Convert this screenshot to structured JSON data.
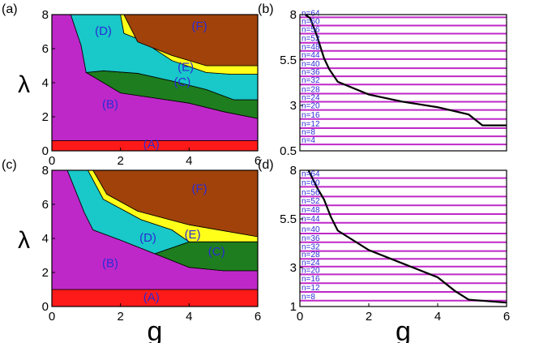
{
  "chart_data": [
    {
      "id": "a",
      "panel_label": "(a)",
      "type": "area",
      "xlabel": "",
      "ylabel": "λ",
      "xlim": [
        0,
        6
      ],
      "ylim": [
        0,
        8
      ],
      "xticks": [
        "0",
        "2",
        "4",
        "6"
      ],
      "yticks": [
        "0",
        "2",
        "4",
        "6",
        "8"
      ],
      "regions": [
        {
          "label": "(A)",
          "color": "#ff1a1a",
          "lower": [
            [
              0,
              0
            ],
            [
              6,
              0
            ]
          ],
          "upper": [
            [
              0,
              0.6
            ],
            [
              6,
              0.6
            ]
          ],
          "label_at": [
            2.9,
            0.15
          ]
        },
        {
          "label": "(B)",
          "color": "#bf28c8",
          "lower": [
            [
              0,
              0.6
            ],
            [
              6,
              0.6
            ]
          ],
          "upper": [
            [
              0,
              8
            ],
            [
              0.55,
              8
            ],
            [
              0.85,
              6.2
            ],
            [
              1.0,
              4.6
            ],
            [
              2.0,
              3.4
            ],
            [
              3.0,
              3.1
            ],
            [
              4.0,
              2.8
            ],
            [
              5.0,
              2.3
            ],
            [
              6.0,
              1.9
            ]
          ],
          "label_at": [
            1.7,
            2.5
          ]
        },
        {
          "label": "(C)",
          "color": "#1e7d1e",
          "lower": [
            [
              1.0,
              4.6
            ],
            [
              2.0,
              3.4
            ],
            [
              3.0,
              3.1
            ],
            [
              4.0,
              2.8
            ],
            [
              5.0,
              2.3
            ],
            [
              6.0,
              1.9
            ]
          ],
          "upper": [
            [
              1.0,
              4.6
            ],
            [
              1.5,
              4.7
            ],
            [
              2.5,
              4.55
            ],
            [
              3.5,
              4.1
            ],
            [
              4.5,
              3.6
            ],
            [
              5.3,
              3.0
            ],
            [
              6.0,
              3.0
            ]
          ],
          "label_at": [
            3.8,
            3.8
          ]
        },
        {
          "label": "(D)",
          "color": "#19c8c8",
          "lower": [
            [
              0.55,
              8
            ],
            [
              0.85,
              6.2
            ],
            [
              1.0,
              4.6
            ],
            [
              1.5,
              4.7
            ],
            [
              2.5,
              4.55
            ],
            [
              3.5,
              4.1
            ],
            [
              4.5,
              3.6
            ],
            [
              5.3,
              3.0
            ],
            [
              6.0,
              3.0
            ]
          ],
          "upper": [
            [
              0.55,
              8
            ],
            [
              2.0,
              8
            ],
            [
              2.1,
              6.9
            ],
            [
              2.6,
              6.5
            ],
            [
              3.5,
              5.3
            ],
            [
              4.5,
              4.6
            ],
            [
              5.2,
              4.5
            ],
            [
              6.0,
              4.5
            ]
          ],
          "label_at": [
            1.5,
            6.8
          ]
        },
        {
          "label": "(E)",
          "color": "#ffff1a",
          "lower": [
            [
              2.0,
              8
            ],
            [
              2.1,
              6.9
            ],
            [
              2.6,
              6.5
            ],
            [
              3.5,
              5.3
            ],
            [
              4.5,
              4.6
            ],
            [
              5.2,
              4.5
            ],
            [
              6.0,
              4.5
            ]
          ],
          "upper": [
            [
              2.0,
              8
            ],
            [
              2.1,
              8
            ],
            [
              2.5,
              6.4
            ],
            [
              3.5,
              5.6
            ],
            [
              4.5,
              5.0
            ],
            [
              6.0,
              5.0
            ]
          ],
          "label_at": [
            3.9,
            4.7
          ]
        },
        {
          "label": "(F)",
          "color": "#a0420a",
          "lower": [
            [
              2.1,
              8
            ],
            [
              2.5,
              6.4
            ],
            [
              3.5,
              5.6
            ],
            [
              4.5,
              5.0
            ],
            [
              6.0,
              5.0
            ]
          ],
          "upper": [
            [
              2.1,
              8
            ],
            [
              6.0,
              8
            ]
          ],
          "label_at": [
            4.3,
            7.1
          ]
        }
      ]
    },
    {
      "id": "b",
      "panel_label": "(b)",
      "type": "line",
      "xlabel": "",
      "ylabel": "",
      "xlim": [
        0,
        6
      ],
      "ylim": [
        0.5,
        8
      ],
      "xticks": [],
      "yticks": [
        "0.5",
        "3",
        "5.5",
        "8"
      ],
      "series": [
        {
          "name": "n=4",
          "y": 0.85
        },
        {
          "name": "n=8",
          "y": 1.3
        },
        {
          "name": "n=12",
          "y": 1.75
        },
        {
          "name": "n=16",
          "y": 2.25
        },
        {
          "name": "n=20",
          "y": 2.75
        },
        {
          "name": "n=24",
          "y": 3.2
        },
        {
          "name": "n=28",
          "y": 3.65
        },
        {
          "name": "n=32",
          "y": 4.15
        },
        {
          "name": "n=36",
          "y": 4.6
        },
        {
          "name": "n=40",
          "y": 5.05
        },
        {
          "name": "n=44",
          "y": 5.55
        },
        {
          "name": "n=48",
          "y": 6.0
        },
        {
          "name": "n=52",
          "y": 6.45
        },
        {
          "name": "n=56",
          "y": 6.95
        },
        {
          "name": "n=60",
          "y": 7.4
        },
        {
          "name": "n=64",
          "y": 7.85
        }
      ],
      "boundary": [
        [
          0.15,
          8
        ],
        [
          0.3,
          7.8
        ],
        [
          0.5,
          6.8
        ],
        [
          0.7,
          5.6
        ],
        [
          0.85,
          5.0
        ],
        [
          1.1,
          4.3
        ],
        [
          2.0,
          3.6
        ],
        [
          3.0,
          3.2
        ],
        [
          4.0,
          2.9
        ],
        [
          4.9,
          2.5
        ],
        [
          5.3,
          1.9
        ],
        [
          6.0,
          1.9
        ]
      ]
    },
    {
      "id": "c",
      "panel_label": "(c)",
      "type": "area",
      "xlabel": "g",
      "ylabel": "λ",
      "xlim": [
        0,
        6
      ],
      "ylim": [
        0,
        8
      ],
      "xticks": [
        "0",
        "2",
        "4",
        "6"
      ],
      "yticks": [
        "0",
        "2",
        "4",
        "6",
        "8"
      ],
      "regions": [
        {
          "label": "(A)",
          "color": "#ff1a1a",
          "lower": [
            [
              0,
              0
            ],
            [
              6,
              0
            ]
          ],
          "upper": [
            [
              0,
              1.0
            ],
            [
              6,
              1.0
            ]
          ],
          "label_at": [
            2.9,
            0.3
          ]
        },
        {
          "label": "(B)",
          "color": "#bf28c8",
          "lower": [
            [
              0,
              1.0
            ],
            [
              6,
              1.0
            ]
          ],
          "upper": [
            [
              0,
              8
            ],
            [
              0.45,
              8
            ],
            [
              0.95,
              5.5
            ],
            [
              1.2,
              4.5
            ],
            [
              2.0,
              3.9
            ],
            [
              3.0,
              3.1
            ],
            [
              4.0,
              2.3
            ],
            [
              5.0,
              2.1
            ],
            [
              6.0,
              2.1
            ]
          ],
          "label_at": [
            1.7,
            2.3
          ]
        },
        {
          "label": "(C)",
          "color": "#1e7d1e",
          "lower": [
            [
              3.0,
              3.1
            ],
            [
              4.0,
              2.3
            ],
            [
              5.0,
              2.1
            ],
            [
              6.0,
              2.1
            ]
          ],
          "upper": [
            [
              3.0,
              3.1
            ],
            [
              4.0,
              3.8
            ],
            [
              5.0,
              3.8
            ],
            [
              6.0,
              3.8
            ]
          ],
          "label_at": [
            4.8,
            3.0
          ]
        },
        {
          "label": "(D)",
          "color": "#19c8c8",
          "lower": [
            [
              0.45,
              8
            ],
            [
              0.95,
              5.5
            ],
            [
              1.2,
              4.5
            ],
            [
              2.0,
              3.9
            ],
            [
              3.0,
              3.1
            ],
            [
              4.0,
              3.8
            ]
          ],
          "upper": [
            [
              0.45,
              8
            ],
            [
              1.05,
              8
            ],
            [
              1.5,
              6.3
            ],
            [
              2.6,
              5.1
            ],
            [
              3.5,
              4.5
            ],
            [
              4.0,
              3.8
            ]
          ],
          "label_at": [
            2.8,
            3.8
          ]
        },
        {
          "label": "(E)",
          "color": "#ffff1a",
          "lower": [
            [
              1.05,
              8
            ],
            [
              1.5,
              6.3
            ],
            [
              2.6,
              5.1
            ],
            [
              3.5,
              4.5
            ],
            [
              4.0,
              3.8
            ],
            [
              5.0,
              3.8
            ],
            [
              6.0,
              3.8
            ]
          ],
          "upper": [
            [
              1.05,
              8
            ],
            [
              1.2,
              8
            ],
            [
              1.6,
              6.6
            ],
            [
              2.5,
              5.6
            ],
            [
              4.0,
              4.8
            ],
            [
              6.0,
              4.1
            ]
          ],
          "label_at": [
            4.1,
            4.0
          ]
        },
        {
          "label": "(F)",
          "color": "#a0420a",
          "lower": [
            [
              1.2,
              8
            ],
            [
              1.6,
              6.6
            ],
            [
              2.5,
              5.6
            ],
            [
              4.0,
              4.8
            ],
            [
              6.0,
              4.1
            ]
          ],
          "upper": [
            [
              1.2,
              8
            ],
            [
              6.0,
              8
            ]
          ],
          "label_at": [
            4.3,
            6.7
          ]
        }
      ]
    },
    {
      "id": "d",
      "panel_label": "(d)",
      "type": "line",
      "xlabel": "g",
      "ylabel": "",
      "xlim": [
        0,
        6
      ],
      "ylim": [
        1,
        8
      ],
      "xticks": [
        "0",
        "2",
        "4",
        "6"
      ],
      "yticks": [
        "1",
        "3",
        "5.5",
        "8"
      ],
      "series": [
        {
          "name": "n=8",
          "y": 1.3
        },
        {
          "name": "n=12",
          "y": 1.75
        },
        {
          "name": "n=16",
          "y": 2.2
        },
        {
          "name": "n=20",
          "y": 2.65
        },
        {
          "name": "n=24",
          "y": 3.05
        },
        {
          "name": "n=28",
          "y": 3.45
        },
        {
          "name": "n=32",
          "y": 3.85
        },
        {
          "name": "n=36",
          "y": 4.3
        },
        {
          "name": "n=40",
          "y": 4.75
        },
        {
          "name": "n=44",
          "y": 5.3
        },
        {
          "name": "n=48",
          "y": 5.75
        },
        {
          "name": "n=52",
          "y": 6.2
        },
        {
          "name": "n=56",
          "y": 6.65
        },
        {
          "name": "n=60",
          "y": 7.15
        },
        {
          "name": "n=64",
          "y": 7.6
        }
      ],
      "boundary": [
        [
          0.25,
          8
        ],
        [
          0.5,
          7.1
        ],
        [
          0.7,
          6.5
        ],
        [
          0.9,
          5.6
        ],
        [
          1.1,
          4.9
        ],
        [
          2.0,
          3.9
        ],
        [
          3.0,
          3.2
        ],
        [
          4.0,
          2.5
        ],
        [
          4.5,
          1.8
        ],
        [
          4.9,
          1.35
        ],
        [
          6.0,
          1.2
        ]
      ]
    }
  ]
}
